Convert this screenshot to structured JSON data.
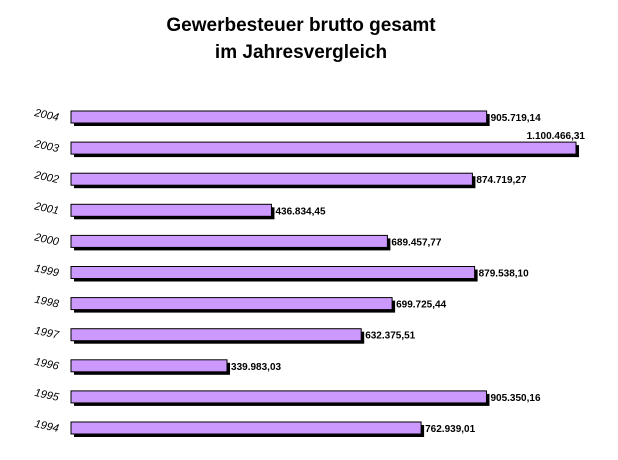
{
  "title": {
    "line1": "Gewerbesteuer brutto gesamt",
    "line2": "im Jahresvergleich"
  },
  "chart_data": {
    "type": "bar",
    "orientation": "horizontal",
    "title": "Gewerbesteuer brutto gesamt im Jahresvergleich",
    "categories": [
      "2004",
      "2003",
      "2002",
      "2001",
      "2000",
      "1999",
      "1998",
      "1997",
      "1996",
      "1995",
      "1994"
    ],
    "values": [
      905719.14,
      1100466.31,
      874719.27,
      436834.45,
      689457.77,
      879538.1,
      699725.44,
      632375.51,
      339983.03,
      905350.16,
      762939.01
    ],
    "value_labels": [
      "905.719,14",
      "1.100.466,31",
      "874.719,27",
      "436.834,45",
      "689.457,77",
      "879.538,10",
      "699.725,44",
      "632.375,51",
      "339.983,03",
      "905.350,16",
      "762.939,01"
    ],
    "xlim": [
      0,
      1100466.31
    ],
    "bar_color": "#cc99ff",
    "shadow_color": "#000000",
    "grid": false,
    "legend": "none"
  }
}
